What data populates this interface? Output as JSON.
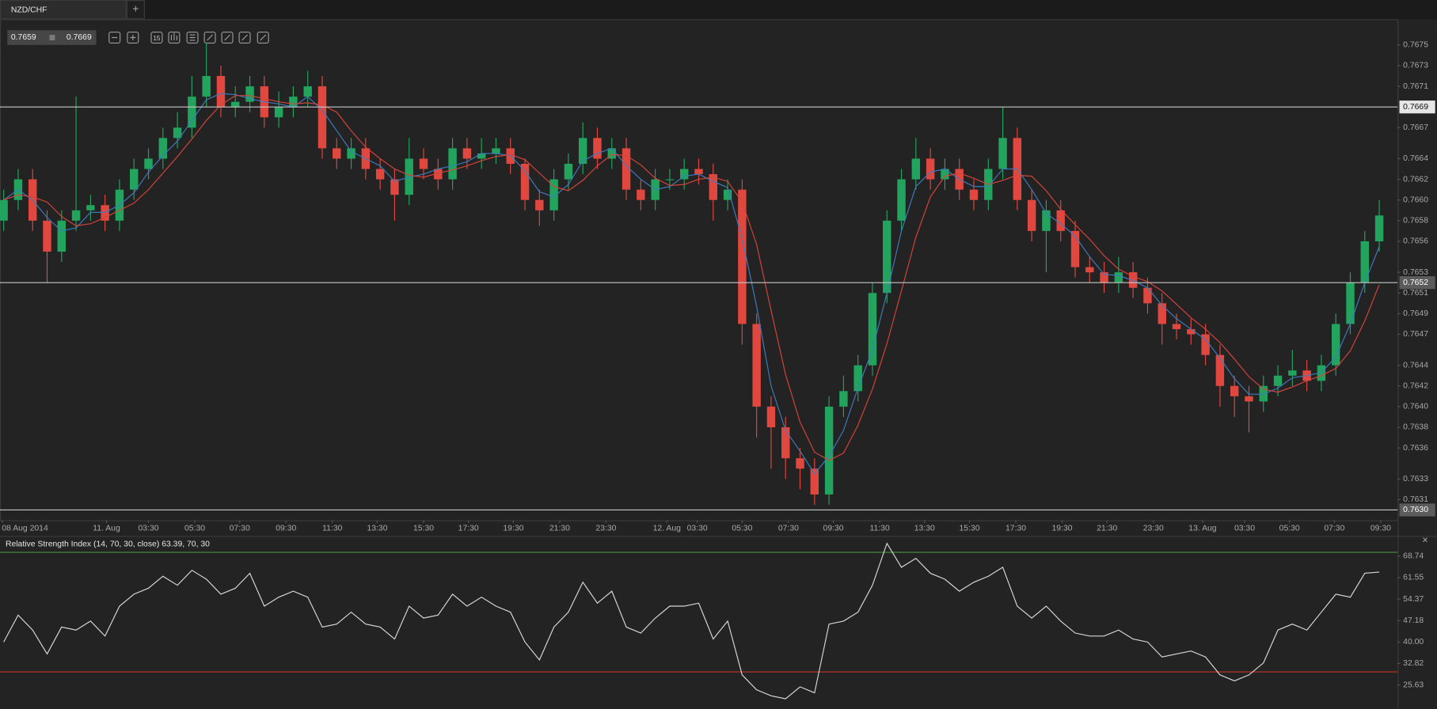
{
  "symbol_tab": "NZD/CHF",
  "new_tab": "+",
  "interval_icon": "15",
  "close_icon": "×",
  "quote": {
    "bid": 0.7659,
    "ask": 0.7669
  },
  "chart_data": [
    {
      "type": "candlestick",
      "up_color": "#22a45e",
      "down_color": "#e0483f",
      "ylim": [
        0.7629,
        0.76774
      ],
      "yticks": [
        0.7675,
        0.7673,
        0.7671,
        0.7667,
        0.7664,
        0.7662,
        {
          "value": 0.766,
          "label": "0.7660"
        },
        0.7658,
        0.7656,
        0.7653,
        0.7651,
        0.7649,
        0.7647,
        0.7644,
        0.7642,
        {
          "value": 0.764,
          "label": "0.7640"
        },
        0.7638,
        0.7636,
        0.7633,
        0.7631
      ],
      "hlines": [
        0.7669,
        0.7652,
        {
          "value": 0.763,
          "label": "0.7630"
        }
      ],
      "xticks": [
        {
          "value": -0.1,
          "label": "08 Aug 2014"
        },
        {
          "value": 7.1,
          "label": "11. Aug"
        },
        {
          "value": 10.0,
          "label": "03:30"
        },
        {
          "value": 13.2,
          "label": "05:30"
        },
        {
          "value": 16.3,
          "label": "07:30"
        },
        {
          "value": 19.5,
          "label": "09:30"
        },
        {
          "value": 22.7,
          "label": "11:30"
        },
        {
          "value": 25.8,
          "label": "13:30"
        },
        {
          "value": 29.0,
          "label": "15:30"
        },
        {
          "value": 32.1,
          "label": "17:30"
        },
        {
          "value": 35.2,
          "label": "19:30"
        },
        {
          "value": 38.4,
          "label": "21:30"
        },
        {
          "value": 41.6,
          "label": "23:30"
        },
        {
          "value": 45.8,
          "label": "12. Aug"
        },
        {
          "value": 47.9,
          "label": "03:30"
        },
        {
          "value": 51.0,
          "label": "05:30"
        },
        {
          "value": 54.2,
          "label": "07:30"
        },
        {
          "value": 57.3,
          "label": "09:30"
        },
        {
          "value": 60.5,
          "label": "11:30"
        },
        {
          "value": 63.6,
          "label": "13:30"
        },
        {
          "value": 66.7,
          "label": "15:30"
        },
        {
          "value": 69.9,
          "label": "17:30"
        },
        {
          "value": 73.1,
          "label": "19:30"
        },
        {
          "value": 76.2,
          "label": "21:30"
        },
        {
          "value": 79.4,
          "label": "23:30"
        },
        {
          "value": 82.8,
          "label": "13. Aug"
        },
        {
          "value": 85.7,
          "label": "03:30"
        },
        {
          "value": 88.8,
          "label": "05:30"
        },
        {
          "value": 91.9,
          "label": "07:30"
        },
        {
          "value": 95.1,
          "label": "09:30"
        }
      ],
      "open": [
        0.7658,
        0.766,
        0.7662,
        0.7658,
        0.7655,
        0.7658,
        0.7659,
        0.76595,
        0.7658,
        0.7661,
        0.7663,
        0.7664,
        0.7666,
        0.7667,
        0.767,
        0.7672,
        0.7669,
        0.76695,
        0.7671,
        0.7668,
        0.7669,
        0.767,
        0.7671,
        0.7665,
        0.7664,
        0.7665,
        0.7663,
        0.7662,
        0.76605,
        0.7664,
        0.7663,
        0.7662,
        0.7665,
        0.7664,
        0.76645,
        0.7665,
        0.76635,
        0.766,
        0.7659,
        0.7662,
        0.76635,
        0.7666,
        0.7664,
        0.7665,
        0.7661,
        0.766,
        0.7662,
        0.7662,
        0.7663,
        0.76625,
        0.766,
        0.7661,
        0.7648,
        0.764,
        0.7638,
        0.7635,
        0.7634,
        0.76315,
        0.764,
        0.76415,
        0.7644,
        0.7651,
        0.7658,
        0.7662,
        0.7664,
        0.7662,
        0.7663,
        0.7661,
        0.766,
        0.7663,
        0.7666,
        0.766,
        0.7657,
        0.7659,
        0.7657,
        0.76535,
        0.7653,
        0.7652,
        0.7653,
        0.76515,
        0.765,
        0.7648,
        0.76475,
        0.7647,
        0.7645,
        0.7642,
        0.7641,
        0.76405,
        0.7642,
        0.7643,
        0.76435,
        0.76425,
        0.7644,
        0.7648,
        0.7652,
        0.7656
      ],
      "high": [
        0.7661,
        0.7663,
        0.7663,
        0.7659,
        0.7659,
        0.767,
        0.76605,
        0.76605,
        0.7662,
        0.7664,
        0.7665,
        0.7667,
        0.76685,
        0.7672,
        0.76752,
        0.7673,
        0.7671,
        0.7672,
        0.7672,
        0.76705,
        0.7671,
        0.76725,
        0.7672,
        0.7666,
        0.7666,
        0.7666,
        0.7664,
        0.7663,
        0.7666,
        0.7665,
        0.7664,
        0.7666,
        0.7666,
        0.7666,
        0.7666,
        0.7666,
        0.7664,
        0.7661,
        0.7663,
        0.76645,
        0.76675,
        0.7667,
        0.7666,
        0.7666,
        0.7662,
        0.7663,
        0.7663,
        0.7664,
        0.7664,
        0.76635,
        0.7662,
        0.7662,
        0.7649,
        0.7641,
        0.7639,
        0.7636,
        0.7635,
        0.7641,
        0.7643,
        0.7645,
        0.7652,
        0.7659,
        0.7663,
        0.7666,
        0.7665,
        0.7664,
        0.7664,
        0.7662,
        0.7664,
        0.7669,
        0.7667,
        0.7661,
        0.766,
        0.766,
        0.7658,
        0.76545,
        0.7654,
        0.76545,
        0.7654,
        0.76525,
        0.7651,
        0.7649,
        0.76485,
        0.7648,
        0.7646,
        0.7643,
        0.7642,
        0.7643,
        0.7644,
        0.76455,
        0.76445,
        0.7645,
        0.7649,
        0.7653,
        0.7657,
        0.766
      ],
      "low": [
        0.7657,
        0.7659,
        0.7657,
        0.7652,
        0.7654,
        0.7657,
        0.7658,
        0.7657,
        0.7657,
        0.766,
        0.7662,
        0.7663,
        0.7665,
        0.7666,
        0.7669,
        0.7668,
        0.7668,
        0.76685,
        0.7667,
        0.7667,
        0.7668,
        0.7669,
        0.7664,
        0.7663,
        0.7663,
        0.7662,
        0.7661,
        0.7658,
        0.76595,
        0.7662,
        0.7661,
        0.7661,
        0.7663,
        0.7663,
        0.76635,
        0.76625,
        0.7659,
        0.76575,
        0.7658,
        0.7661,
        0.76625,
        0.7663,
        0.7663,
        0.766,
        0.7659,
        0.7659,
        0.7661,
        0.7661,
        0.76615,
        0.7658,
        0.7659,
        0.7646,
        0.7637,
        0.7634,
        0.7633,
        0.7632,
        0.76305,
        0.76305,
        0.7639,
        0.76405,
        0.7643,
        0.765,
        0.7657,
        0.7661,
        0.7661,
        0.7661,
        0.766,
        0.7659,
        0.7659,
        0.7662,
        0.7659,
        0.7656,
        0.7653,
        0.7656,
        0.76525,
        0.7652,
        0.7651,
        0.7651,
        0.76505,
        0.7649,
        0.7646,
        0.76465,
        0.7646,
        0.7644,
        0.764,
        0.7639,
        0.76375,
        0.76395,
        0.7641,
        0.7642,
        0.76415,
        0.76415,
        0.7643,
        0.7647,
        0.7651,
        0.7655
      ],
      "close": [
        0.766,
        0.7662,
        0.7658,
        0.7655,
        0.7658,
        0.7659,
        0.76595,
        0.7658,
        0.7661,
        0.7663,
        0.7664,
        0.7666,
        0.7667,
        0.767,
        0.7672,
        0.7669,
        0.76695,
        0.7671,
        0.7668,
        0.7669,
        0.767,
        0.7671,
        0.7665,
        0.7664,
        0.7665,
        0.7663,
        0.7662,
        0.76605,
        0.7664,
        0.7663,
        0.7662,
        0.7665,
        0.7664,
        0.76645,
        0.7665,
        0.76635,
        0.766,
        0.7659,
        0.7662,
        0.76635,
        0.7666,
        0.7664,
        0.7665,
        0.7661,
        0.766,
        0.7662,
        0.7662,
        0.7663,
        0.76625,
        0.766,
        0.7661,
        0.7648,
        0.764,
        0.7638,
        0.7635,
        0.7634,
        0.76315,
        0.764,
        0.76415,
        0.7644,
        0.7651,
        0.7658,
        0.7662,
        0.7664,
        0.7662,
        0.7663,
        0.7661,
        0.766,
        0.7663,
        0.7666,
        0.766,
        0.7657,
        0.7659,
        0.7657,
        0.76535,
        0.7653,
        0.7652,
        0.7653,
        0.76515,
        0.765,
        0.7648,
        0.76475,
        0.7647,
        0.7645,
        0.7642,
        0.7641,
        0.76405,
        0.7642,
        0.7643,
        0.76435,
        0.76425,
        0.7644,
        0.7648,
        0.7652,
        0.7656,
        0.76585
      ],
      "overlays": [
        {
          "color": "#3d7cc0",
          "values": [
            0.766,
            0.7661,
            0.766,
            0.76583,
            0.7657,
            0.76573,
            0.76588,
            0.76588,
            0.76595,
            0.76607,
            0.76627,
            0.76643,
            0.76657,
            0.76677,
            0.76697,
            0.76703,
            0.76702,
            0.76698,
            0.76695,
            0.76693,
            0.7669,
            0.767,
            0.76687,
            0.76667,
            0.76647,
            0.7664,
            0.76633,
            0.76618,
            0.76622,
            0.76625,
            0.7663,
            0.76633,
            0.76637,
            0.76645,
            0.76645,
            0.76643,
            0.76628,
            0.76608,
            0.76603,
            0.76615,
            0.76638,
            0.76645,
            0.7665,
            0.76633,
            0.7662,
            0.7661,
            0.76613,
            0.76623,
            0.76625,
            0.76618,
            0.76612,
            0.76563,
            0.76497,
            0.7642,
            0.76377,
            0.76357,
            0.76335,
            0.76352,
            0.76377,
            0.76418,
            0.76455,
            0.7651,
            0.7657,
            0.76613,
            0.76627,
            0.7663,
            0.7662,
            0.76613,
            0.76613,
            0.7663,
            0.7663,
            0.7661,
            0.76587,
            0.76577,
            0.76565,
            0.76545,
            0.76528,
            0.76527,
            0.76522,
            0.76515,
            0.76498,
            0.76485,
            0.76475,
            0.76465,
            0.76447,
            0.76427,
            0.76412,
            0.76412,
            0.76418,
            0.76428,
            0.7643,
            0.76433,
            0.76448,
            0.7648,
            0.7652,
            0.76555
          ]
        },
        {
          "color": "#d6443b",
          "values": [
            0.766,
            0.76605,
            0.76603,
            0.76598,
            0.76584,
            0.76575,
            0.76577,
            0.76583,
            0.7659,
            0.76597,
            0.7661,
            0.76626,
            0.76642,
            0.76659,
            0.76677,
            0.76692,
            0.76701,
            0.76701,
            0.76698,
            0.76695,
            0.76693,
            0.76694,
            0.76692,
            0.76685,
            0.76667,
            0.76651,
            0.7664,
            0.7663,
            0.76624,
            0.76622,
            0.76626,
            0.76629,
            0.76633,
            0.76638,
            0.76642,
            0.76644,
            0.76639,
            0.76626,
            0.76613,
            0.76609,
            0.76619,
            0.76633,
            0.76644,
            0.76643,
            0.76634,
            0.76621,
            0.76614,
            0.76615,
            0.7662,
            0.76622,
            0.76618,
            0.76598,
            0.76557,
            0.76493,
            0.76431,
            0.76385,
            0.76356,
            0.76348,
            0.76355,
            0.76382,
            0.76417,
            0.76461,
            0.76512,
            0.76564,
            0.76603,
            0.76623,
            0.76626,
            0.76621,
            0.76615,
            0.76619,
            0.76624,
            0.76623,
            0.76609,
            0.76591,
            0.76576,
            0.76562,
            0.76546,
            0.76533,
            0.76526,
            0.76521,
            0.76512,
            0.76499,
            0.76486,
            0.76475,
            0.76462,
            0.76446,
            0.76429,
            0.76417,
            0.76414,
            0.76419,
            0.76425,
            0.7643,
            0.76437,
            0.76454,
            0.76483,
            0.76518
          ]
        }
      ]
    },
    {
      "type": "line",
      "title": "Relative Strength Index (14, 70, 30, close) 63.39, 70, 30",
      "color": "#d8d8d8",
      "ylim": [
        17.6,
        74.9
      ],
      "yticks": [
        68.74,
        61.55,
        54.37,
        47.18,
        {
          "value": 40,
          "label": "40.00"
        },
        32.82,
        25.63
      ],
      "levels": [
        {
          "value": 70,
          "color": "#3f8a3f"
        },
        {
          "value": 30,
          "color": "#b8322a"
        }
      ],
      "values": [
        40,
        49,
        44,
        36,
        45,
        44,
        47,
        42,
        52,
        56,
        58,
        62,
        59,
        64,
        61,
        56,
        58,
        63,
        52,
        55,
        57,
        55,
        45,
        46,
        50,
        46,
        45,
        41,
        52,
        48,
        49,
        56,
        52,
        55,
        52,
        50,
        40,
        34,
        45,
        50,
        60,
        53,
        57,
        45,
        43,
        48,
        52,
        52,
        53,
        41,
        47,
        29,
        24,
        22,
        21,
        25,
        23,
        46,
        47,
        50,
        59,
        73,
        65,
        68,
        63,
        61,
        57,
        60,
        62,
        65,
        52,
        48,
        52,
        47,
        43,
        42,
        42,
        44,
        41,
        40,
        35,
        36,
        37,
        35,
        29,
        27,
        29,
        33,
        44,
        46,
        44,
        50,
        56,
        55,
        63,
        63.39
      ]
    }
  ]
}
